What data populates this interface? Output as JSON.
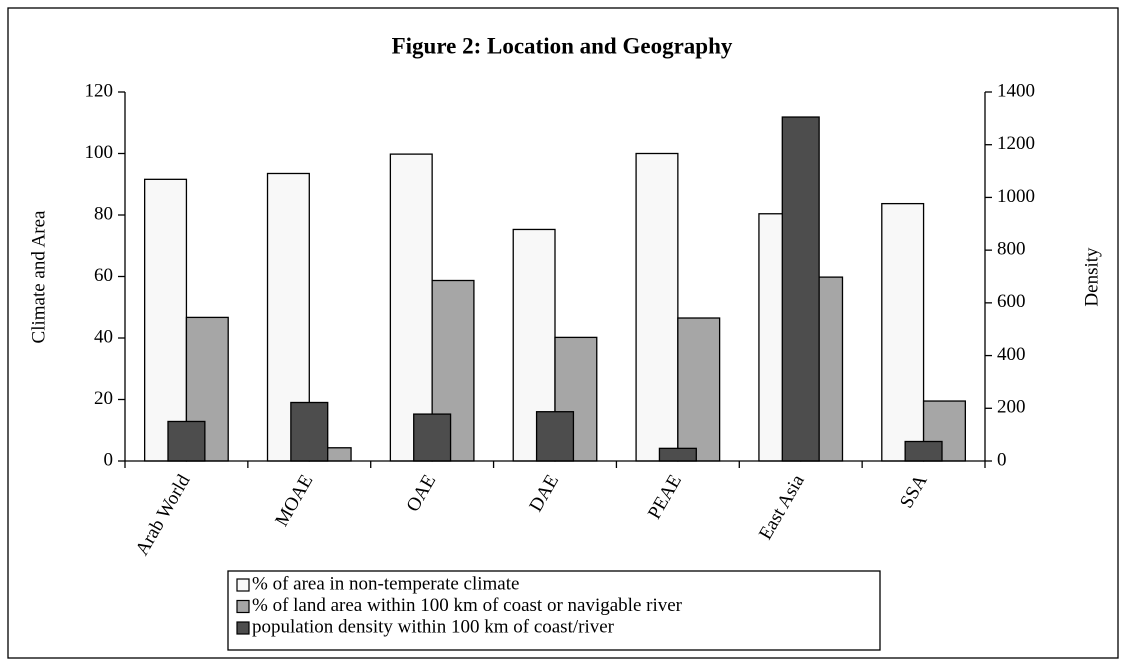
{
  "chart_data": {
    "type": "bar",
    "title": "Figure 2: Location and Geography",
    "y_label": "Climate and Area",
    "y2_label": "Density",
    "categories": [
      "Arab World",
      "MOAE",
      "OAE",
      "DAE",
      "PEAE",
      "East Asia",
      "SSA"
    ],
    "series": [
      {
        "name": "% of area in non-temperate climate",
        "color": "#f8f8f8",
        "values": [
          91.6,
          93.5,
          99.8,
          75.3,
          100,
          80.4,
          83.7
        ]
      },
      {
        "name": "% of land area within 100 km of coast or navigable river",
        "color": "#a6a6a6",
        "values": [
          46.7,
          4.3,
          58.7,
          40.2,
          46.5,
          59.8,
          19.5
        ]
      },
      {
        "name": "population density within 100 km of coast/river",
        "color": "#4d4d4d",
        "axis": "y2",
        "values": [
          150,
          222,
          178,
          187,
          48,
          1305,
          74
        ]
      }
    ],
    "ylim": [
      0,
      120
    ],
    "yticks": [
      0,
      20,
      40,
      60,
      80,
      100,
      120
    ],
    "y2lim": [
      0,
      1400
    ],
    "y2ticks": [
      0,
      200,
      400,
      600,
      800,
      1000,
      1200,
      1400
    ],
    "grid": false
  }
}
